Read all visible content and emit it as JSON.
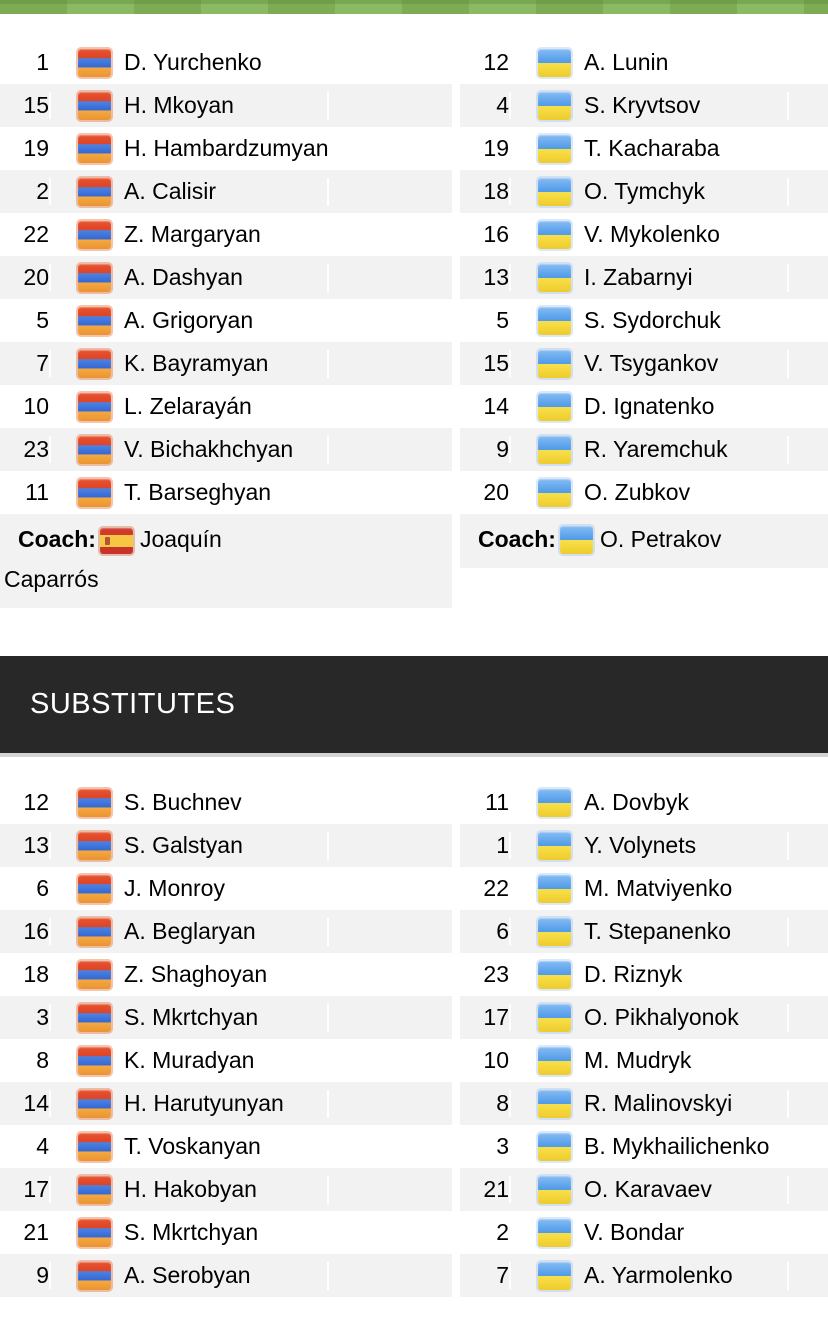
{
  "substitutes_title": "SUBSTITUTES",
  "lineups": {
    "home": {
      "team_flag": "armenia",
      "coach_label": "Coach:",
      "coach_flag": "spain",
      "coach_name": "Joaquín Caparrós",
      "players": [
        {
          "num": "1",
          "name": "D. Yurchenko"
        },
        {
          "num": "15",
          "name": "H. Mkoyan"
        },
        {
          "num": "19",
          "name": "H. Hambardzumyan"
        },
        {
          "num": "2",
          "name": "A. Calisir"
        },
        {
          "num": "22",
          "name": "Z. Margaryan"
        },
        {
          "num": "20",
          "name": "A. Dashyan"
        },
        {
          "num": "5",
          "name": "A. Grigoryan"
        },
        {
          "num": "7",
          "name": "K. Bayramyan"
        },
        {
          "num": "10",
          "name": "L. Zelarayán"
        },
        {
          "num": "23",
          "name": "V. Bichakhchyan"
        },
        {
          "num": "11",
          "name": "T. Barseghyan"
        }
      ],
      "substitutes": [
        {
          "num": "12",
          "name": "S. Buchnev"
        },
        {
          "num": "13",
          "name": "S. Galstyan"
        },
        {
          "num": "6",
          "name": "J. Monroy"
        },
        {
          "num": "16",
          "name": "A. Beglaryan"
        },
        {
          "num": "18",
          "name": "Z. Shaghoyan"
        },
        {
          "num": "3",
          "name": "S. Mkrtchyan"
        },
        {
          "num": "8",
          "name": "K. Muradyan"
        },
        {
          "num": "14",
          "name": "H. Harutyunyan"
        },
        {
          "num": "4",
          "name": "T. Voskanyan"
        },
        {
          "num": "17",
          "name": "H. Hakobyan"
        },
        {
          "num": "21",
          "name": "S. Mkrtchyan"
        },
        {
          "num": "9",
          "name": "A. Serobyan"
        }
      ]
    },
    "away": {
      "team_flag": "ukraine",
      "coach_label": "Coach:",
      "coach_flag": "ukraine",
      "coach_name": "O. Petrakov",
      "players": [
        {
          "num": "12",
          "name": "A. Lunin"
        },
        {
          "num": "4",
          "name": "S. Kryvtsov"
        },
        {
          "num": "19",
          "name": "T. Kacharaba"
        },
        {
          "num": "18",
          "name": "O. Tymchyk"
        },
        {
          "num": "16",
          "name": "V. Mykolenko"
        },
        {
          "num": "13",
          "name": "I. Zabarnyi"
        },
        {
          "num": "5",
          "name": "S. Sydorchuk"
        },
        {
          "num": "15",
          "name": "V. Tsygankov"
        },
        {
          "num": "14",
          "name": "D. Ignatenko"
        },
        {
          "num": "9",
          "name": "R. Yaremchuk"
        },
        {
          "num": "20",
          "name": "O. Zubkov"
        }
      ],
      "substitutes": [
        {
          "num": "11",
          "name": "A. Dovbyk"
        },
        {
          "num": "1",
          "name": "Y. Volynets"
        },
        {
          "num": "22",
          "name": "M. Matviyenko"
        },
        {
          "num": "6",
          "name": "T. Stepanenko"
        },
        {
          "num": "23",
          "name": "D. Riznyk"
        },
        {
          "num": "17",
          "name": "O. Pikhalyonok"
        },
        {
          "num": "10",
          "name": "M. Mudryk"
        },
        {
          "num": "8",
          "name": "R. Malinovskyi"
        },
        {
          "num": "3",
          "name": "B. Mykhailichenko"
        },
        {
          "num": "21",
          "name": "O. Karavaev"
        },
        {
          "num": "2",
          "name": "V. Bondar"
        },
        {
          "num": "7",
          "name": "A. Yarmolenko"
        }
      ]
    }
  },
  "colors": {
    "pitch_green_a": "#7dac55",
    "pitch_green_b": "#8bba64",
    "pitch_green_dark_a": "#6f9d49",
    "pitch_green_dark_b": "#7aa751",
    "row_alt_bg": "#f2f2f2",
    "subs_header_bg": "#282828",
    "subs_header_text": "#ffffff",
    "text": "#000000"
  }
}
